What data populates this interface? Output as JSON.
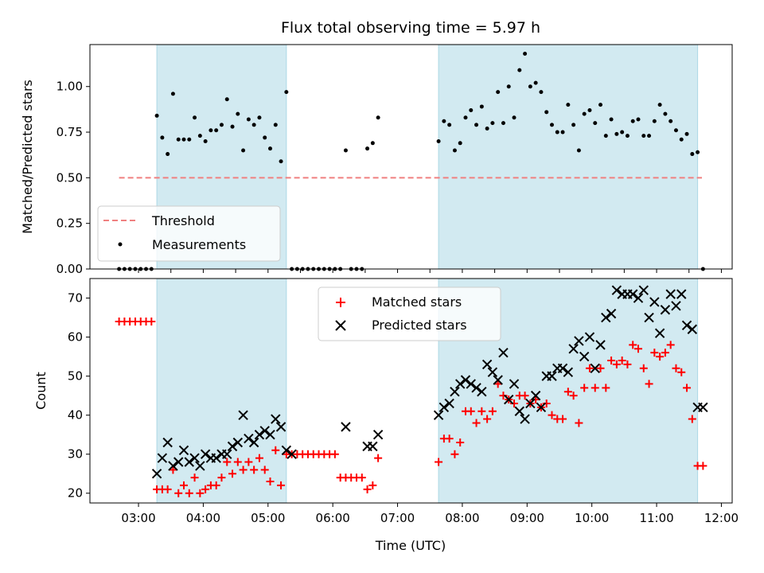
{
  "chart_data": {
    "title": "Flux total observing time = 5.97 h",
    "xlabel": "Time (UTC)",
    "x_ticks": [
      "03:00",
      "04:00",
      "05:00",
      "06:00",
      "07:00",
      "08:00",
      "09:00",
      "10:00",
      "11:00",
      "12:00"
    ],
    "xlim": [
      "02:15",
      "12:10"
    ],
    "shaded_regions": [
      {
        "start": "03:17",
        "end": "05:17",
        "color": "#add8e6"
      },
      {
        "start": "07:38",
        "end": "11:38",
        "color": "#add8e6"
      }
    ],
    "panels": [
      {
        "type": "scatter",
        "ylabel": "Matched/Predicted stars",
        "ylim": [
          0,
          1.23
        ],
        "y_ticks": [
          "0.00",
          "0.25",
          "0.50",
          "0.75",
          "1.00"
        ],
        "legend_position": "lower-left",
        "series": [
          {
            "name": "Threshold",
            "style": "dashed-line",
            "color": "#f08080",
            "x": [
              "02:42",
              "11:42"
            ],
            "y": [
              0.5,
              0.5
            ]
          },
          {
            "name": "Measurements",
            "style": "dot",
            "color": "#000000",
            "x": [
              "02:42",
              "02:47",
              "02:52",
              "02:57",
              "03:02",
              "03:07",
              "03:12",
              "03:17",
              "03:22",
              "03:27",
              "03:32",
              "03:37",
              "03:42",
              "03:47",
              "03:52",
              "03:57",
              "04:02",
              "04:07",
              "04:12",
              "04:17",
              "04:22",
              "04:27",
              "04:32",
              "04:37",
              "04:42",
              "04:47",
              "04:52",
              "04:57",
              "05:02",
              "05:07",
              "05:12",
              "05:17",
              "05:22",
              "05:27",
              "05:32",
              "05:37",
              "05:42",
              "05:47",
              "05:52",
              "05:57",
              "06:02",
              "06:07",
              "06:12",
              "06:17",
              "06:22",
              "06:27",
              "06:32",
              "06:37",
              "06:42",
              "07:38",
              "07:43",
              "07:48",
              "07:53",
              "07:58",
              "08:03",
              "08:08",
              "08:13",
              "08:18",
              "08:23",
              "08:28",
              "08:33",
              "08:38",
              "08:43",
              "08:48",
              "08:53",
              "08:58",
              "09:03",
              "09:08",
              "09:13",
              "09:18",
              "09:23",
              "09:28",
              "09:33",
              "09:38",
              "09:43",
              "09:48",
              "09:53",
              "09:58",
              "10:03",
              "10:08",
              "10:13",
              "10:18",
              "10:23",
              "10:28",
              "10:33",
              "10:38",
              "10:43",
              "10:48",
              "10:53",
              "10:58",
              "11:03",
              "11:08",
              "11:13",
              "11:18",
              "11:23",
              "11:28",
              "11:33",
              "11:38",
              "11:43"
            ],
            "y": [
              0,
              0,
              0,
              0,
              0,
              0,
              0,
              0.84,
              0.72,
              0.63,
              0.96,
              0.71,
              0.71,
              0.71,
              0.83,
              0.73,
              0.7,
              0.76,
              0.76,
              0.79,
              0.93,
              0.78,
              0.85,
              0.65,
              0.82,
              0.79,
              0.83,
              0.72,
              0.66,
              0.79,
              0.59,
              0.97,
              0,
              0,
              0,
              0,
              0,
              0,
              0,
              0,
              0,
              0,
              0.65,
              0,
              0,
              0,
              0.66,
              0.69,
              0.83,
              0.7,
              0.81,
              0.79,
              0.65,
              0.69,
              0.83,
              0.87,
              0.79,
              0.89,
              0.77,
              0.8,
              0.97,
              0.8,
              1.0,
              0.83,
              1.09,
              1.18,
              1.0,
              1.02,
              0.97,
              0.86,
              0.79,
              0.75,
              0.75,
              0.9,
              0.79,
              0.65,
              0.85,
              0.87,
              0.8,
              0.9,
              0.73,
              0.82,
              0.74,
              0.75,
              0.73,
              0.81,
              0.82,
              0.73,
              0.73,
              0.81,
              0.9,
              0.85,
              0.81,
              0.76,
              0.71,
              0.74,
              0.63,
              0.64,
              0
            ]
          }
        ]
      },
      {
        "type": "scatter",
        "ylabel": "Count",
        "ylim": [
          17.5,
          75
        ],
        "y_ticks": [
          "20",
          "30",
          "40",
          "50",
          "60",
          "70"
        ],
        "legend_position": "upper-center",
        "series": [
          {
            "name": "Matched stars",
            "style": "plus",
            "color": "#ff0000",
            "x": [
              "02:42",
              "02:47",
              "02:52",
              "02:57",
              "03:02",
              "03:07",
              "03:12",
              "03:17",
              "03:22",
              "03:27",
              "03:32",
              "03:37",
              "03:42",
              "03:47",
              "03:52",
              "03:57",
              "04:02",
              "04:07",
              "04:12",
              "04:17",
              "04:22",
              "04:27",
              "04:32",
              "04:37",
              "04:42",
              "04:47",
              "04:52",
              "04:57",
              "05:02",
              "05:07",
              "05:12",
              "05:17",
              "05:22",
              "05:27",
              "05:32",
              "05:37",
              "05:42",
              "05:47",
              "05:52",
              "05:57",
              "06:02",
              "06:07",
              "06:12",
              "06:17",
              "06:22",
              "06:27",
              "06:32",
              "06:37",
              "06:42",
              "07:38",
              "07:43",
              "07:48",
              "07:53",
              "07:58",
              "08:03",
              "08:08",
              "08:13",
              "08:18",
              "08:23",
              "08:28",
              "08:33",
              "08:38",
              "08:43",
              "08:48",
              "08:53",
              "08:58",
              "09:03",
              "09:08",
              "09:13",
              "09:18",
              "09:23",
              "09:28",
              "09:33",
              "09:38",
              "09:43",
              "09:48",
              "09:53",
              "09:58",
              "10:03",
              "10:08",
              "10:13",
              "10:18",
              "10:23",
              "10:28",
              "10:33",
              "10:38",
              "10:43",
              "10:48",
              "10:53",
              "10:58",
              "11:03",
              "11:08",
              "11:13",
              "11:18",
              "11:23",
              "11:28",
              "11:33",
              "11:38",
              "11:43"
            ],
            "y": [
              64,
              64,
              64,
              64,
              64,
              64,
              64,
              21,
              21,
              21,
              26,
              20,
              22,
              20,
              24,
              20,
              21,
              22,
              22,
              24,
              28,
              25,
              28,
              26,
              28,
              26,
              29,
              26,
              23,
              31,
              22,
              30,
              30,
              30,
              30,
              30,
              30,
              30,
              30,
              30,
              30,
              24,
              24,
              24,
              24,
              24,
              21,
              22,
              29,
              28,
              34,
              34,
              30,
              33,
              41,
              41,
              38,
              41,
              39,
              41,
              48,
              45,
              44,
              43,
              45,
              45,
              43,
              44,
              42,
              43,
              40,
              39,
              39,
              46,
              45,
              38,
              47,
              52,
              47,
              52,
              47,
              54,
              53,
              54,
              53,
              58,
              57,
              52,
              48,
              56,
              55,
              56,
              58,
              52,
              51,
              47,
              39,
              27,
              27
            ]
          },
          {
            "name": "Predicted stars",
            "style": "x",
            "color": "#000000",
            "x": [
              "03:17",
              "03:22",
              "03:27",
              "03:32",
              "03:37",
              "03:42",
              "03:47",
              "03:52",
              "03:57",
              "04:02",
              "04:07",
              "04:12",
              "04:17",
              "04:22",
              "04:27",
              "04:32",
              "04:37",
              "04:42",
              "04:47",
              "04:52",
              "04:57",
              "05:02",
              "05:07",
              "05:12",
              "05:17",
              "05:22",
              "06:12",
              "06:32",
              "06:37",
              "06:42",
              "07:38",
              "07:43",
              "07:48",
              "07:53",
              "07:58",
              "08:03",
              "08:08",
              "08:13",
              "08:18",
              "08:23",
              "08:28",
              "08:33",
              "08:38",
              "08:43",
              "08:48",
              "08:53",
              "08:58",
              "09:03",
              "09:08",
              "09:13",
              "09:18",
              "09:23",
              "09:28",
              "09:33",
              "09:38",
              "09:43",
              "09:48",
              "09:53",
              "09:58",
              "10:03",
              "10:08",
              "10:13",
              "10:18",
              "10:23",
              "10:28",
              "10:33",
              "10:38",
              "10:43",
              "10:48",
              "10:53",
              "10:58",
              "11:03",
              "11:08",
              "11:13",
              "11:18",
              "11:23",
              "11:28",
              "11:33",
              "11:38",
              "11:43"
            ],
            "y": [
              25,
              29,
              33,
              27,
              28,
              31,
              28,
              29,
              27,
              30,
              29,
              29,
              30,
              30,
              32,
              33,
              40,
              34,
              33,
              35,
              36,
              35,
              39,
              37,
              31,
              30,
              37,
              32,
              32,
              35,
              40,
              42,
              43,
              46,
              48,
              49,
              48,
              47,
              46,
              53,
              51,
              49,
              56,
              44,
              48,
              41,
              39,
              43,
              45,
              42,
              50,
              50,
              52,
              52,
              51,
              57,
              59,
              55,
              60,
              52,
              58,
              65,
              66,
              72,
              71,
              71,
              71,
              70,
              72,
              65,
              69,
              61,
              67,
              71,
              68,
              71,
              63,
              62,
              42,
              42
            ]
          }
        ]
      }
    ]
  }
}
